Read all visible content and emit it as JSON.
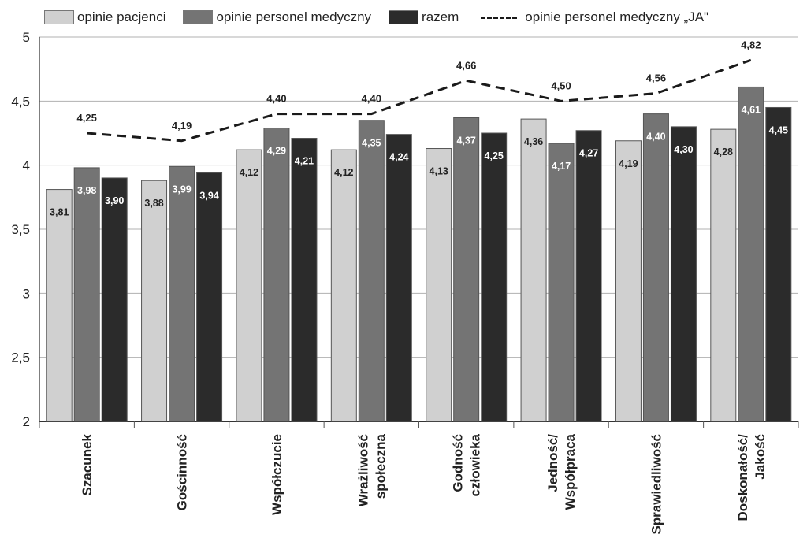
{
  "chart_data": {
    "type": "bar",
    "title": "",
    "xlabel": "",
    "ylabel": "",
    "ylim": [
      2,
      5
    ],
    "yticks": [
      2,
      2.5,
      3,
      3.5,
      4,
      4.5,
      5
    ],
    "ytick_labels": [
      "2",
      "2,5",
      "3",
      "3,5",
      "4",
      "4,5",
      "5"
    ],
    "grid": true,
    "legend_position": "top",
    "categories": [
      [
        "Szacunek"
      ],
      [
        "Gościnność"
      ],
      [
        "Współczucie"
      ],
      [
        "Wrażliwość",
        "społeczna"
      ],
      [
        "Godność",
        "człowieka"
      ],
      [
        "Jedność/",
        "Współpraca"
      ],
      [
        "Sprawiedliwość"
      ],
      [
        "Doskonałość/",
        "Jakość"
      ]
    ],
    "series": [
      {
        "name": "opinie pacjenci",
        "type": "bar",
        "color": "#d0d0d0",
        "label_color": "#222222",
        "values": [
          3.81,
          3.88,
          4.12,
          4.12,
          4.13,
          4.36,
          4.19,
          4.28
        ],
        "labels": [
          "3,81",
          "3,88",
          "4,12",
          "4,12",
          "4,13",
          "4,36",
          "4,19",
          "4,28"
        ]
      },
      {
        "name": "opinie personel medyczny",
        "type": "bar",
        "color": "#747474",
        "label_color": "#ffffff",
        "values": [
          3.98,
          3.99,
          4.29,
          4.35,
          4.37,
          4.17,
          4.4,
          4.61
        ],
        "labels": [
          "3,98",
          "3,99",
          "4,29",
          "4,35",
          "4,37",
          "4,17",
          "4,40",
          "4,61"
        ]
      },
      {
        "name": "razem",
        "type": "bar",
        "color": "#2b2b2b",
        "label_color": "#ffffff",
        "values": [
          3.9,
          3.94,
          4.21,
          4.24,
          4.25,
          4.27,
          4.3,
          4.45
        ],
        "labels": [
          "3,90",
          "3,94",
          "4,21",
          "4,24",
          "4,25",
          "4,27",
          "4,30",
          "4,45"
        ]
      },
      {
        "name": "opinie personel medyczny „JA\"",
        "type": "line",
        "style": "dashed",
        "color": "#1a1a1a",
        "values": [
          4.25,
          4.19,
          4.4,
          4.4,
          4.66,
          4.5,
          4.56,
          4.82
        ],
        "labels": [
          "4,25",
          "4,19",
          "4,40",
          "4,40",
          "4,66",
          "4,50",
          "4,56",
          "4,82"
        ]
      }
    ]
  }
}
